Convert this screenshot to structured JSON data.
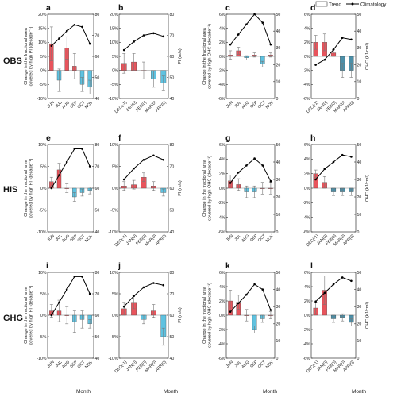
{
  "legend": {
    "trend": "Trend",
    "climatology": "Climatology"
  },
  "rows": [
    {
      "label": "OBS"
    },
    {
      "label": "HIS"
    },
    {
      "label": "GHG"
    }
  ],
  "xlabel": "Month",
  "colors": {
    "positive": "#e8545c",
    "negative": "#5fc2e0",
    "ohc_negative": "#4b8fa8",
    "line": "#000000",
    "axis": "#333333"
  },
  "chart_data": [
    {
      "letter": "a",
      "type": "bar",
      "row": 0,
      "col": 0,
      "variable": "PI",
      "categories": [
        "JUN",
        "JUL",
        "AUG",
        "SEP",
        "OCT",
        "NOV"
      ],
      "values": [
        9.5,
        -3.5,
        8,
        1.5,
        -5,
        -6
      ],
      "errors": [
        6,
        4,
        4,
        4.5,
        2.5,
        2.5
      ],
      "climatology": [
        65,
        68.5,
        72,
        75,
        74,
        66
      ],
      "ylim": [
        -10,
        20
      ],
      "yticks": [
        "-10%",
        "-5%",
        "0%",
        "5%",
        "10%",
        "15%",
        "20%"
      ],
      "y2lim": [
        40,
        80
      ],
      "y2ticks": [
        "40",
        "50",
        "60",
        "70",
        "80"
      ],
      "ylabel_lines": [
        "Change in the fractional area",
        "covered by high PI (decade⁻¹)"
      ],
      "y2label": ""
    },
    {
      "letter": "b",
      "type": "bar",
      "row": 0,
      "col": 1,
      "variable": "PI",
      "categories": [
        "DEC(-1)",
        "JAN(0)",
        "FEB(0)",
        "MAR(0)",
        "APR(0)"
      ],
      "values": [
        2.5,
        3,
        0,
        -3,
        -4.5
      ],
      "errors": [
        3.5,
        3,
        3,
        3,
        2.5
      ],
      "climatology": [
        63,
        67,
        70,
        71,
        69.5
      ],
      "ylim": [
        -10,
        20
      ],
      "yticks": [
        "-10%",
        "-5%",
        "0%",
        "5%",
        "10%",
        "15%",
        "20%"
      ],
      "y2lim": [
        40,
        80
      ],
      "y2ticks": [
        "40",
        "50",
        "60",
        "70",
        "80"
      ],
      "ylabel_lines": [],
      "y2label": "PI (m/s)"
    },
    {
      "letter": "c",
      "type": "bar",
      "row": 0,
      "col": 2,
      "variable": "OHC",
      "categories": [
        "JUN",
        "JUL",
        "AUG",
        "SEP",
        "OCT",
        "NOV"
      ],
      "values": [
        0.2,
        0.8,
        -0.2,
        0.2,
        -1.1,
        0.2
      ],
      "errors": [
        0.6,
        0.5,
        0.3,
        0.3,
        0.4,
        0.3
      ],
      "climatology": [
        32,
        38,
        44,
        50,
        45,
        32
      ],
      "ylim": [
        -6,
        6
      ],
      "yticks": [
        "-6%",
        "-4%",
        "-2%",
        "0%",
        "2%",
        "4%",
        "6%"
      ],
      "y2lim": [
        0,
        50
      ],
      "y2ticks": [
        "0",
        "10",
        "20",
        "30",
        "40",
        "50"
      ],
      "ylabel_lines": [
        "Change in the fractional area",
        "covered by high OHC (decade⁻¹)"
      ],
      "y2label": ""
    },
    {
      "letter": "d",
      "type": "bar",
      "row": 0,
      "col": 3,
      "variable": "OHC",
      "categories": [
        "DEC(-1)",
        "JAN(0)",
        "FEB(0)",
        "MAR(0)",
        "APR(0)"
      ],
      "values": [
        2,
        2,
        0.5,
        -2,
        -2
      ],
      "errors": [
        1,
        1.2,
        0.5,
        1,
        1
      ],
      "climatology": [
        20,
        23,
        29,
        36,
        35
      ],
      "ylim": [
        -6,
        6
      ],
      "yticks": [
        "-6%",
        "-4%",
        "-2%",
        "0%",
        "2%",
        "4%",
        "6%"
      ],
      "y2lim": [
        0,
        50
      ],
      "y2ticks": [
        "0",
        "10",
        "20",
        "30",
        "40",
        "50"
      ],
      "ylabel_lines": [],
      "y2label": "OHC (kJ/cm²)"
    },
    {
      "letter": "e",
      "type": "bar",
      "row": 1,
      "col": 0,
      "variable": "PI",
      "categories": [
        "JUN",
        "JUL",
        "AUG",
        "SEP",
        "OCT",
        "NOV"
      ],
      "values": [
        1.5,
        4.2,
        0,
        -2,
        -1,
        -0.5
      ],
      "errors": [
        1,
        1.5,
        1,
        1,
        0.8,
        0.8
      ],
      "climatology": [
        60,
        66,
        72,
        78,
        78,
        70
      ],
      "ylim": [
        -10,
        10
      ],
      "yticks": [
        "-10%",
        "-5%",
        "0%",
        "5%",
        "10%"
      ],
      "y2lim": [
        40,
        80
      ],
      "y2ticks": [
        "40",
        "50",
        "60",
        "70",
        "80"
      ],
      "ylabel_lines": [
        "Change in the fractional area",
        "covered by high PI (decade⁻¹)"
      ],
      "y2label": ""
    },
    {
      "letter": "f",
      "type": "bar",
      "row": 1,
      "col": 1,
      "variable": "PI",
      "categories": [
        "DEC(-1)",
        "JAN(0)",
        "FEB(0)",
        "MAR(0)",
        "APR(0)"
      ],
      "values": [
        0.5,
        0.8,
        2.5,
        0.5,
        -1
      ],
      "errors": [
        1,
        1,
        1,
        1,
        0.8
      ],
      "climatology": [
        64,
        69,
        73,
        75,
        73
      ],
      "ylim": [
        -10,
        10
      ],
      "yticks": [
        "-10%",
        "-5%",
        "0%",
        "5%",
        "10%"
      ],
      "y2lim": [
        40,
        80
      ],
      "y2ticks": [
        "40",
        "50",
        "60",
        "70",
        "80"
      ],
      "ylabel_lines": [],
      "y2label": "PI (m/s)"
    },
    {
      "letter": "g",
      "type": "bar",
      "row": 1,
      "col": 2,
      "variable": "OHC",
      "categories": [
        "JUN",
        "JUL",
        "AUG",
        "SEP",
        "OCT",
        "NOV"
      ],
      "values": [
        1,
        0.5,
        -0.5,
        -0.5,
        0,
        0
      ],
      "errors": [
        0.8,
        0.8,
        0.8,
        0.8,
        0.8,
        0.8
      ],
      "climatology": [
        28,
        34,
        38,
        42,
        38,
        29
      ],
      "ylim": [
        -6,
        6
      ],
      "yticks": [
        "-6%",
        "-4%",
        "-2%",
        "0%",
        "2%",
        "4%",
        "6%"
      ],
      "y2lim": [
        0,
        50
      ],
      "y2ticks": [
        "0",
        "10",
        "20",
        "30",
        "40",
        "50"
      ],
      "ylabel_lines": [
        "Change in the fractional area",
        "covered by high OHC (decade⁻¹)"
      ],
      "y2label": ""
    },
    {
      "letter": "h",
      "type": "bar",
      "row": 1,
      "col": 3,
      "variable": "OHC",
      "categories": [
        "DEC(-1)",
        "JAN(0)",
        "FEB(0)",
        "MAR(0)",
        "APR(0)"
      ],
      "values": [
        2,
        0.8,
        -0.5,
        -0.5,
        -0.5
      ],
      "errors": [
        0.5,
        0.8,
        0.5,
        0.5,
        0.5
      ],
      "climatology": [
        30,
        36,
        40,
        44,
        43
      ],
      "ylim": [
        -6,
        6
      ],
      "yticks": [
        "-6%",
        "-4%",
        "-2%",
        "0%",
        "2%",
        "4%",
        "6%"
      ],
      "y2lim": [
        0,
        50
      ],
      "y2ticks": [
        "0",
        "10",
        "20",
        "30",
        "40",
        "50"
      ],
      "ylabel_lines": [],
      "y2label": "OHC (kJ/cm²)"
    },
    {
      "letter": "i",
      "type": "bar",
      "row": 2,
      "col": 0,
      "variable": "PI",
      "categories": [
        "JUN",
        "JUL",
        "AUG",
        "SEP",
        "OCT",
        "NOV"
      ],
      "values": [
        1,
        1,
        0,
        -1.5,
        -1,
        -2
      ],
      "errors": [
        1.5,
        2.5,
        2,
        2.5,
        2,
        1
      ],
      "climatology": [
        60,
        66,
        72,
        78,
        78,
        70
      ],
      "ylim": [
        -10,
        10
      ],
      "yticks": [
        "-10%",
        "-5%",
        "0%",
        "5%",
        "10%"
      ],
      "y2lim": [
        40,
        80
      ],
      "y2ticks": [
        "40",
        "50",
        "60",
        "70",
        "80"
      ],
      "ylabel_lines": [
        "Change in the fractional area",
        "covered by high PI (decade⁻¹)"
      ],
      "y2label": ""
    },
    {
      "letter": "j",
      "type": "bar",
      "row": 2,
      "col": 1,
      "variable": "PI",
      "categories": [
        "DEC(-1)",
        "JAN(0)",
        "FEB(0)",
        "MAR(0)",
        "APR(0)"
      ],
      "values": [
        1.5,
        3,
        -1,
        1,
        -5
      ],
      "errors": [
        1.5,
        1.5,
        1,
        1.5,
        2
      ],
      "climatology": [
        64,
        69,
        73,
        75,
        74
      ],
      "ylim": [
        -10,
        10
      ],
      "yticks": [
        "-10%",
        "-5%",
        "0%",
        "5%",
        "10%"
      ],
      "y2lim": [
        40,
        80
      ],
      "y2ticks": [
        "40",
        "50",
        "60",
        "70",
        "80"
      ],
      "ylabel_lines": [],
      "y2label": "PI (m/s)"
    },
    {
      "letter": "k",
      "type": "bar",
      "row": 2,
      "col": 2,
      "variable": "OHC",
      "categories": [
        "JUN",
        "JUL",
        "AUG",
        "SEP",
        "OCT",
        "NOV"
      ],
      "values": [
        2,
        1.8,
        0,
        -2,
        -0.5,
        0
      ],
      "errors": [
        1.5,
        1,
        0.8,
        0.5,
        0.5,
        0.5
      ],
      "climatology": [
        27,
        32,
        37,
        43,
        40,
        28
      ],
      "ylim": [
        -6,
        6
      ],
      "yticks": [
        "-6%",
        "-4%",
        "-2%",
        "0%",
        "2%",
        "4%",
        "6%"
      ],
      "y2lim": [
        0,
        50
      ],
      "y2ticks": [
        "0",
        "10",
        "20",
        "30",
        "40",
        "50"
      ],
      "ylabel_lines": [
        "Change in the fractional area",
        "covered by high OHC (decade⁻¹)"
      ],
      "y2label": ""
    },
    {
      "letter": "l",
      "type": "bar",
      "row": 2,
      "col": 3,
      "variable": "OHC",
      "categories": [
        "DEC(-1)",
        "JAN(0)",
        "FEB(0)",
        "MAR(0)",
        "APR(0)"
      ],
      "values": [
        1,
        3.5,
        -0.5,
        -0.3,
        -1
      ],
      "errors": [
        0.8,
        2,
        0.5,
        0.5,
        0.5
      ],
      "climatology": [
        33,
        38,
        43,
        47,
        45
      ],
      "ylim": [
        -6,
        6
      ],
      "yticks": [
        "-6%",
        "-4%",
        "-2%",
        "0%",
        "2%",
        "4%",
        "6%"
      ],
      "y2lim": [
        0,
        50
      ],
      "y2ticks": [
        "0",
        "10",
        "20",
        "30",
        "40",
        "50"
      ],
      "ylabel_lines": [],
      "y2label": "OHC (kJ/cm²)"
    }
  ]
}
